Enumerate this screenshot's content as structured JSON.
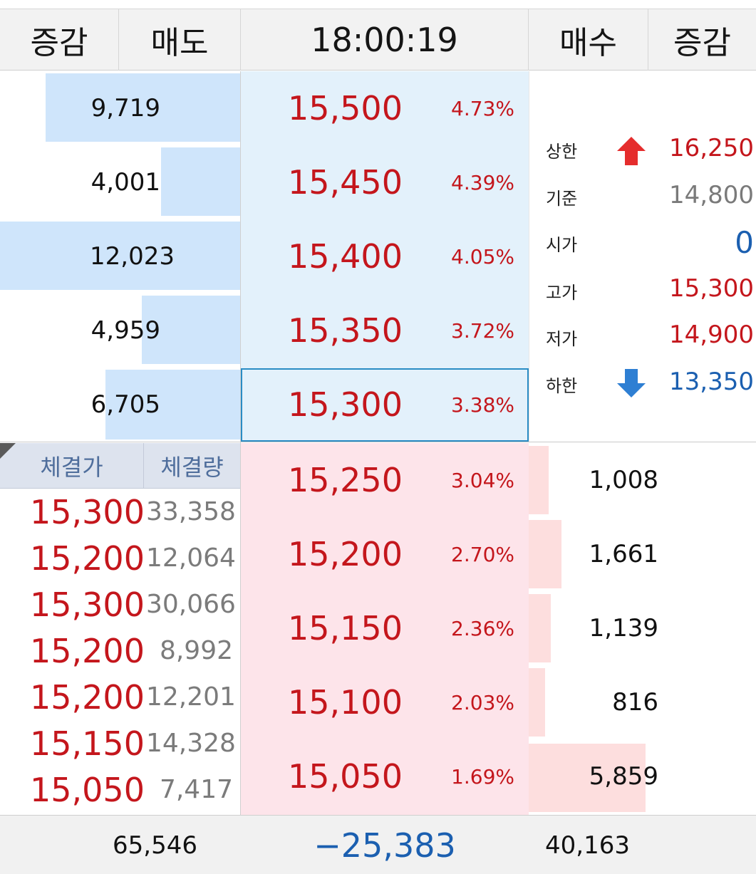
{
  "header": {
    "left_change": "증감",
    "ask_qty": "매도",
    "time": "18:00:19",
    "bid_qty": "매수",
    "right_change": "증감"
  },
  "colors": {
    "up_red": "#c4161c",
    "down_blue": "#1b5fb0",
    "ask_bar": "#cfe5fb",
    "bid_bar": "#fddede",
    "current_border": "#2a8cc4"
  },
  "asks": [
    {
      "qty": "9,719",
      "price": "15,500",
      "pct": "4.73%",
      "bar_fraction": 0.81
    },
    {
      "qty": "4,001",
      "price": "15,450",
      "pct": "4.39%",
      "bar_fraction": 0.33
    },
    {
      "qty": "12,023",
      "price": "15,400",
      "pct": "4.05%",
      "bar_fraction": 1.0
    },
    {
      "qty": "4,959",
      "price": "15,350",
      "pct": "3.72%",
      "bar_fraction": 0.41
    },
    {
      "qty": "6,705",
      "price": "15,300",
      "pct": "3.38%",
      "bar_fraction": 0.56
    }
  ],
  "bids": [
    {
      "price": "15,250",
      "pct": "3.04%",
      "qty": "1,008",
      "bar_fraction": 0.17
    },
    {
      "price": "15,200",
      "pct": "2.70%",
      "qty": "1,661",
      "bar_fraction": 0.28
    },
    {
      "price": "15,150",
      "pct": "2.36%",
      "qty": "1,139",
      "bar_fraction": 0.19
    },
    {
      "price": "15,100",
      "pct": "2.03%",
      "qty": "816",
      "bar_fraction": 0.14
    },
    {
      "price": "15,050",
      "pct": "1.69%",
      "qty": "5,859",
      "bar_fraction": 1.0
    }
  ],
  "info": {
    "upper_limit": {
      "label": "상한",
      "value": "16,250",
      "icon": "arrow-up-icon"
    },
    "base": {
      "label": "기준",
      "value": "14,800"
    },
    "open": {
      "label": "시가",
      "value": "0"
    },
    "high": {
      "label": "고가",
      "value": "15,300"
    },
    "low": {
      "label": "저가",
      "value": "14,900"
    },
    "lower_limit": {
      "label": "하한",
      "value": "13,350",
      "icon": "arrow-down-icon"
    }
  },
  "trades": {
    "col_price": "체결가",
    "col_volume": "체결량",
    "rows": [
      {
        "price": "15,300",
        "volume": "33,358"
      },
      {
        "price": "15,200",
        "volume": "12,064"
      },
      {
        "price": "15,300",
        "volume": "30,066"
      },
      {
        "price": "15,200",
        "volume": "8,992"
      },
      {
        "price": "15,200",
        "volume": "12,201"
      },
      {
        "price": "15,150",
        "volume": "14,328"
      },
      {
        "price": "15,050",
        "volume": "7,417"
      }
    ]
  },
  "footer": {
    "total_ask": "65,546",
    "net_diff": "−25,383",
    "total_bid": "40,163"
  }
}
